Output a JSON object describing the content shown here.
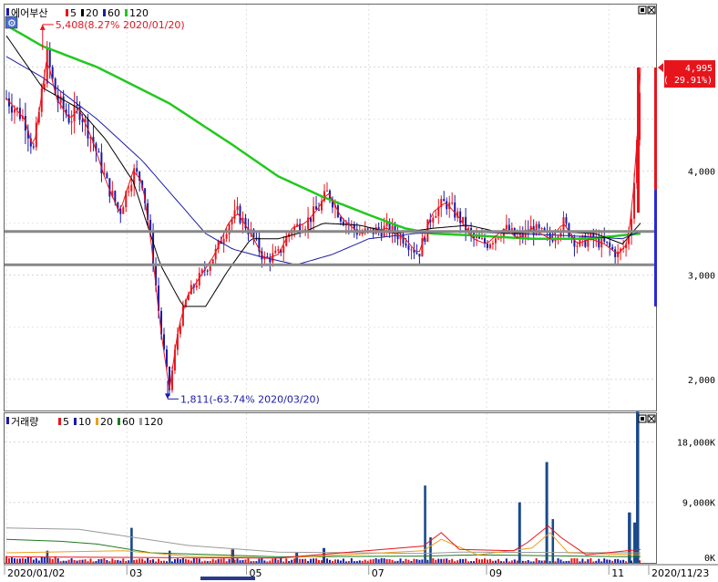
{
  "price_panel": {
    "title": "에어부산",
    "ma_legend": [
      {
        "label": "5",
        "color": "#e8141c"
      },
      {
        "label": "20",
        "color": "#000000"
      },
      {
        "label": "60",
        "color": "#1a1aa8"
      },
      {
        "label": "120",
        "color": "#22c81e"
      }
    ],
    "icons": [
      "restore-icon",
      "close-icon"
    ],
    "y_ticks": [
      "4,000",
      "3,000",
      "2,000"
    ],
    "current_price": "4,995",
    "current_change": "( 29.91%)",
    "high_annotation": "5,408(8.27% 2020/01/20)",
    "low_annotation": "1,811(-63.74% 2020/03/20)"
  },
  "volume_panel": {
    "title": "거래량",
    "ma_legend": [
      {
        "label": "5",
        "color": "#e8141c"
      },
      {
        "label": "10",
        "color": "#1a1aa8"
      },
      {
        "label": "20",
        "color": "#e8a01c"
      },
      {
        "label": "60",
        "color": "#1e7a1e"
      },
      {
        "label": "120",
        "color": "#9a9a9a"
      }
    ],
    "y_ticks": [
      "18,000K",
      "9,000K",
      "0K"
    ]
  },
  "x_axis": {
    "labels": [
      "2020/01/02",
      "03",
      "05",
      "07",
      "09",
      "11",
      "2020/11/23"
    ]
  },
  "chart_data": {
    "type": "candlestick",
    "ylim": [
      1700,
      5600
    ],
    "horizontal_lines": [
      3420,
      3100
    ],
    "high_point": {
      "date": "2020/01/20",
      "value": 5408
    },
    "low_point": {
      "date": "2020/03/20",
      "value": 1811
    },
    "last_close": 4995,
    "price_keypoints": [
      [
        0,
        4700
      ],
      [
        10,
        4600
      ],
      [
        20,
        4500
      ],
      [
        30,
        4200
      ],
      [
        45,
        5100
      ],
      [
        55,
        4700
      ],
      [
        70,
        4500
      ],
      [
        80,
        4600
      ],
      [
        95,
        4300
      ],
      [
        110,
        3900
      ],
      [
        125,
        3600
      ],
      [
        140,
        4000
      ],
      [
        150,
        3900
      ],
      [
        160,
        3300
      ],
      [
        170,
        2500
      ],
      [
        180,
        1900
      ],
      [
        190,
        2500
      ],
      [
        200,
        2800
      ],
      [
        215,
        3000
      ],
      [
        230,
        3200
      ],
      [
        245,
        3500
      ],
      [
        255,
        3600
      ],
      [
        270,
        3400
      ],
      [
        285,
        3150
      ],
      [
        300,
        3200
      ],
      [
        315,
        3450
      ],
      [
        330,
        3500
      ],
      [
        345,
        3650
      ],
      [
        355,
        3800
      ],
      [
        370,
        3550
      ],
      [
        390,
        3400
      ],
      [
        420,
        3450
      ],
      [
        440,
        3350
      ],
      [
        455,
        3200
      ],
      [
        470,
        3600
      ],
      [
        485,
        3700
      ],
      [
        500,
        3550
      ],
      [
        515,
        3350
      ],
      [
        530,
        3300
      ],
      [
        550,
        3450
      ],
      [
        565,
        3350
      ],
      [
        580,
        3450
      ],
      [
        600,
        3350
      ],
      [
        615,
        3500
      ],
      [
        630,
        3300
      ],
      [
        645,
        3350
      ],
      [
        660,
        3300
      ],
      [
        675,
        3200
      ],
      [
        685,
        3300
      ],
      [
        690,
        3600
      ],
      [
        695,
        4100
      ],
      [
        700,
        4995
      ]
    ],
    "ma120_keypoints": [
      [
        0,
        5400
      ],
      [
        40,
        5200
      ],
      [
        100,
        5000
      ],
      [
        180,
        4650
      ],
      [
        250,
        4250
      ],
      [
        300,
        3950
      ],
      [
        350,
        3750
      ],
      [
        400,
        3580
      ],
      [
        440,
        3450
      ],
      [
        470,
        3400
      ],
      [
        520,
        3380
      ],
      [
        580,
        3350
      ],
      [
        640,
        3350
      ],
      [
        700,
        3400
      ]
    ],
    "ma60_keypoints": [
      [
        0,
        5100
      ],
      [
        40,
        4900
      ],
      [
        100,
        4500
      ],
      [
        150,
        4100
      ],
      [
        190,
        3700
      ],
      [
        220,
        3400
      ],
      [
        250,
        3250
      ],
      [
        280,
        3180
      ],
      [
        320,
        3100
      ],
      [
        360,
        3200
      ],
      [
        400,
        3350
      ],
      [
        450,
        3400
      ],
      [
        500,
        3420
      ],
      [
        560,
        3400
      ],
      [
        620,
        3380
      ],
      [
        680,
        3350
      ],
      [
        700,
        3420
      ]
    ],
    "ma20_keypoints": [
      [
        0,
        5300
      ],
      [
        40,
        4800
      ],
      [
        80,
        4600
      ],
      [
        110,
        4300
      ],
      [
        140,
        3900
      ],
      [
        170,
        3100
      ],
      [
        195,
        2700
      ],
      [
        220,
        2700
      ],
      [
        245,
        3050
      ],
      [
        270,
        3350
      ],
      [
        300,
        3350
      ],
      [
        330,
        3420
      ],
      [
        350,
        3500
      ],
      [
        390,
        3480
      ],
      [
        430,
        3400
      ],
      [
        470,
        3450
      ],
      [
        510,
        3480
      ],
      [
        550,
        3400
      ],
      [
        600,
        3420
      ],
      [
        650,
        3400
      ],
      [
        680,
        3300
      ],
      [
        700,
        3500
      ]
    ],
    "volume_ylim": [
      0,
      22000
    ],
    "volume_spikes": [
      [
        45,
        1800
      ],
      [
        138,
        5200
      ],
      [
        180,
        1800
      ],
      [
        250,
        2000
      ],
      [
        320,
        1500
      ],
      [
        350,
        2200
      ],
      [
        462,
        11500
      ],
      [
        468,
        3800
      ],
      [
        566,
        9000
      ],
      [
        596,
        15000
      ],
      [
        603,
        6500
      ],
      [
        688,
        7500
      ],
      [
        694,
        6000
      ],
      [
        697,
        22500
      ]
    ]
  }
}
